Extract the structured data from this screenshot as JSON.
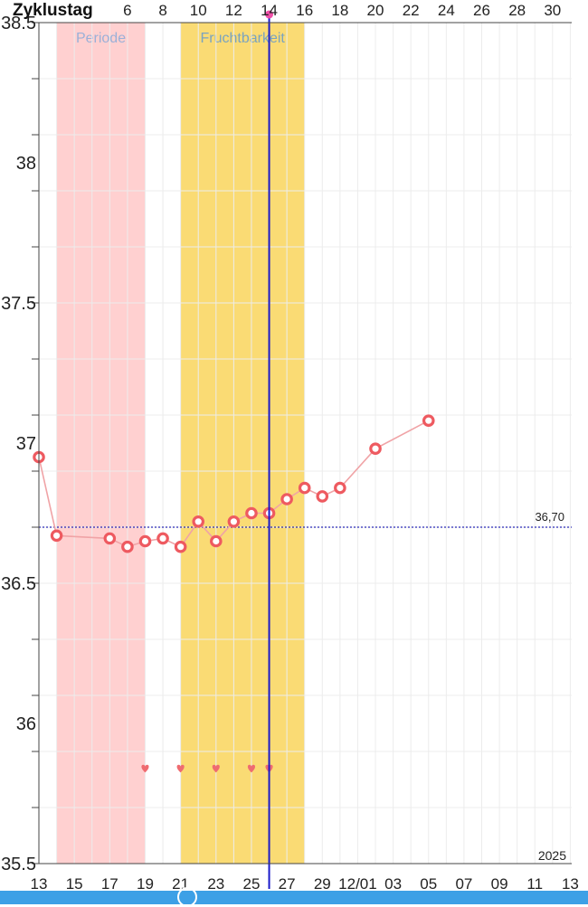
{
  "chart_data": {
    "type": "line",
    "title": "",
    "top_axis_label": "Zyklustag",
    "top_ticks": [
      "6",
      "8",
      "10",
      "12",
      "14",
      "16",
      "18",
      "20",
      "22",
      "24",
      "26",
      "28",
      "30"
    ],
    "bottom_ticks": [
      "13",
      "15",
      "17",
      "19",
      "21",
      "23",
      "25",
      "27",
      "29",
      "12/01",
      "03",
      "05",
      "07",
      "09",
      "11",
      "13"
    ],
    "year_label": "2025",
    "ylim": [
      35.5,
      38.5
    ],
    "y_ticks": [
      "38.5",
      "38",
      "37.5",
      "37",
      "36.5",
      "36",
      "35.5"
    ],
    "grid": true,
    "reference_line": {
      "value": 36.7,
      "label": "36,70"
    },
    "bands": [
      {
        "name": "Periode",
        "start": 1,
        "end": 6,
        "color": "#ffd0d0",
        "label_color": "#9ab0d8"
      },
      {
        "name": "Fruchtbarkeit",
        "start": 8,
        "end": 15,
        "color": "#fadb74",
        "label_color": "#7aa3bf"
      }
    ],
    "today_index": 13,
    "series": [
      {
        "x": [
          0,
          1,
          4,
          5,
          6,
          7,
          8,
          9,
          10,
          11,
          12,
          13,
          14,
          15,
          16,
          17,
          19,
          22
        ],
        "values": [
          36.95,
          36.67,
          36.66,
          36.63,
          36.65,
          36.66,
          36.63,
          36.72,
          36.65,
          36.72,
          36.75,
          36.75,
          36.8,
          36.84,
          36.81,
          36.84,
          36.98,
          37.08
        ],
        "color": "#ee6b6e"
      }
    ],
    "intercourse_days": [
      6,
      8,
      10,
      12,
      13
    ],
    "colors": {
      "line": "#f0a3a6",
      "marker": "#ee5a60",
      "heart": "#ef6b70",
      "today": "#1a1ac9",
      "reference": "#2b2bb8"
    }
  }
}
